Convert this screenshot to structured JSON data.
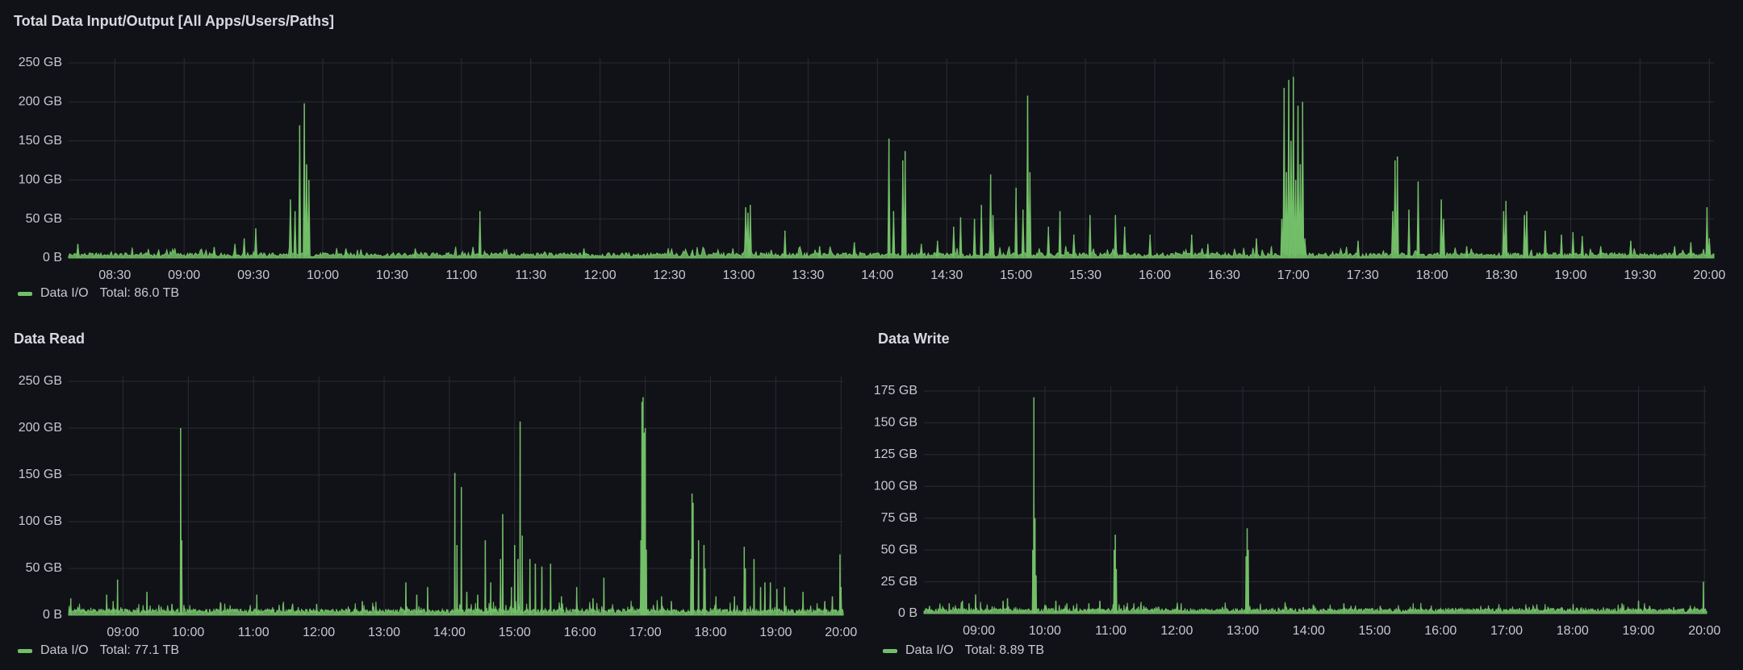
{
  "colors": {
    "series": "#73bf69",
    "grid": "#2a2c33",
    "axis_text": "#c7c8d1",
    "background": "#111217"
  },
  "chart_data": [
    {
      "type": "area",
      "title": "Total Data Input/Output [All Apps/Users/Paths]",
      "y_unit": "GB",
      "ylim": [
        0,
        250
      ],
      "yticks": [
        "0 B",
        "50 GB",
        "100 GB",
        "150 GB",
        "200 GB",
        "250 GB"
      ],
      "ytick_values": [
        0,
        50,
        100,
        150,
        200,
        250
      ],
      "xlim_minutes": [
        490,
        1202
      ],
      "xticks": [
        "08:30",
        "09:00",
        "09:30",
        "10:00",
        "10:30",
        "11:00",
        "11:30",
        "12:00",
        "12:30",
        "13:00",
        "13:30",
        "14:00",
        "14:30",
        "15:00",
        "15:30",
        "16:00",
        "16:30",
        "17:00",
        "17:30",
        "18:00",
        "18:30",
        "19:00",
        "19:30",
        "20:00"
      ],
      "xtick_minutes": [
        510,
        540,
        570,
        600,
        630,
        660,
        690,
        720,
        750,
        780,
        810,
        840,
        870,
        900,
        930,
        960,
        990,
        1020,
        1050,
        1080,
        1110,
        1140,
        1170,
        1200
      ],
      "baseline": 5,
      "spikes": [
        {
          "t": 494,
          "v": 18
        },
        {
          "t": 529,
          "v": 10
        },
        {
          "t": 553,
          "v": 14
        },
        {
          "t": 562,
          "v": 18
        },
        {
          "t": 566,
          "v": 25
        },
        {
          "t": 571,
          "v": 38
        },
        {
          "t": 586,
          "v": 75
        },
        {
          "t": 588,
          "v": 60
        },
        {
          "t": 590,
          "v": 170
        },
        {
          "t": 592,
          "v": 198
        },
        {
          "t": 593,
          "v": 120
        },
        {
          "t": 594,
          "v": 100
        },
        {
          "t": 610,
          "v": 12
        },
        {
          "t": 640,
          "v": 12
        },
        {
          "t": 665,
          "v": 14
        },
        {
          "t": 668,
          "v": 60
        },
        {
          "t": 713,
          "v": 12
        },
        {
          "t": 760,
          "v": 10
        },
        {
          "t": 783,
          "v": 65
        },
        {
          "t": 784,
          "v": 58
        },
        {
          "t": 785,
          "v": 68
        },
        {
          "t": 800,
          "v": 35
        },
        {
          "t": 815,
          "v": 15
        },
        {
          "t": 830,
          "v": 20
        },
        {
          "t": 845,
          "v": 153
        },
        {
          "t": 847,
          "v": 60
        },
        {
          "t": 851,
          "v": 125
        },
        {
          "t": 852,
          "v": 137
        },
        {
          "t": 859,
          "v": 18
        },
        {
          "t": 866,
          "v": 22
        },
        {
          "t": 873,
          "v": 40
        },
        {
          "t": 876,
          "v": 52
        },
        {
          "t": 882,
          "v": 50
        },
        {
          "t": 885,
          "v": 68
        },
        {
          "t": 889,
          "v": 107
        },
        {
          "t": 890,
          "v": 55
        },
        {
          "t": 900,
          "v": 90
        },
        {
          "t": 903,
          "v": 62
        },
        {
          "t": 905,
          "v": 208
        },
        {
          "t": 906,
          "v": 110
        },
        {
          "t": 914,
          "v": 40
        },
        {
          "t": 919,
          "v": 60
        },
        {
          "t": 925,
          "v": 30
        },
        {
          "t": 932,
          "v": 55
        },
        {
          "t": 943,
          "v": 55
        },
        {
          "t": 947,
          "v": 40
        },
        {
          "t": 958,
          "v": 30
        },
        {
          "t": 976,
          "v": 30
        },
        {
          "t": 983,
          "v": 18
        },
        {
          "t": 1004,
          "v": 25
        },
        {
          "t": 1015,
          "v": 50
        },
        {
          "t": 1016,
          "v": 218
        },
        {
          "t": 1017,
          "v": 110
        },
        {
          "t": 1018,
          "v": 228
        },
        {
          "t": 1019,
          "v": 150
        },
        {
          "t": 1020,
          "v": 232
        },
        {
          "t": 1021,
          "v": 100
        },
        {
          "t": 1022,
          "v": 195
        },
        {
          "t": 1023,
          "v": 120
        },
        {
          "t": 1024,
          "v": 200
        },
        {
          "t": 1025,
          "v": 25
        },
        {
          "t": 1048,
          "v": 22
        },
        {
          "t": 1063,
          "v": 60
        },
        {
          "t": 1064,
          "v": 125
        },
        {
          "t": 1065,
          "v": 130
        },
        {
          "t": 1070,
          "v": 62
        },
        {
          "t": 1074,
          "v": 98
        },
        {
          "t": 1084,
          "v": 75
        },
        {
          "t": 1085,
          "v": 50
        },
        {
          "t": 1095,
          "v": 15
        },
        {
          "t": 1111,
          "v": 60
        },
        {
          "t": 1112,
          "v": 73
        },
        {
          "t": 1120,
          "v": 55
        },
        {
          "t": 1121,
          "v": 60
        },
        {
          "t": 1129,
          "v": 35
        },
        {
          "t": 1136,
          "v": 30
        },
        {
          "t": 1141,
          "v": 33
        },
        {
          "t": 1145,
          "v": 28
        },
        {
          "t": 1153,
          "v": 15
        },
        {
          "t": 1166,
          "v": 22
        },
        {
          "t": 1185,
          "v": 15
        },
        {
          "t": 1192,
          "v": 20
        },
        {
          "t": 1199,
          "v": 65
        },
        {
          "t": 1200,
          "v": 25
        }
      ],
      "legend": {
        "label": "Data I/O",
        "total": "Total: 86.0 TB"
      }
    },
    {
      "type": "area",
      "title": "Data Read",
      "y_unit": "GB",
      "ylim": [
        0,
        250
      ],
      "yticks": [
        "0 B",
        "50 GB",
        "100 GB",
        "150 GB",
        "200 GB",
        "250 GB"
      ],
      "ytick_values": [
        0,
        50,
        100,
        150,
        200,
        250
      ],
      "xlim_minutes": [
        490,
        1202
      ],
      "xticks": [
        "09:00",
        "10:00",
        "11:00",
        "12:00",
        "13:00",
        "14:00",
        "15:00",
        "16:00",
        "17:00",
        "18:00",
        "19:00",
        "20:00"
      ],
      "xtick_minutes": [
        540,
        600,
        660,
        720,
        780,
        840,
        900,
        960,
        1020,
        1080,
        1140,
        1200
      ],
      "baseline": 5,
      "spikes": [
        {
          "t": 492,
          "v": 18
        },
        {
          "t": 525,
          "v": 22
        },
        {
          "t": 531,
          "v": 15
        },
        {
          "t": 535,
          "v": 38
        },
        {
          "t": 562,
          "v": 25
        },
        {
          "t": 585,
          "v": 12
        },
        {
          "t": 593,
          "v": 200
        },
        {
          "t": 594,
          "v": 80
        },
        {
          "t": 630,
          "v": 12
        },
        {
          "t": 663,
          "v": 22
        },
        {
          "t": 718,
          "v": 12
        },
        {
          "t": 760,
          "v": 15
        },
        {
          "t": 800,
          "v": 35
        },
        {
          "t": 810,
          "v": 22
        },
        {
          "t": 820,
          "v": 30
        },
        {
          "t": 845,
          "v": 152
        },
        {
          "t": 847,
          "v": 75
        },
        {
          "t": 851,
          "v": 137
        },
        {
          "t": 856,
          "v": 25
        },
        {
          "t": 866,
          "v": 22
        },
        {
          "t": 873,
          "v": 80
        },
        {
          "t": 878,
          "v": 35
        },
        {
          "t": 887,
          "v": 60
        },
        {
          "t": 889,
          "v": 108
        },
        {
          "t": 897,
          "v": 30
        },
        {
          "t": 900,
          "v": 75
        },
        {
          "t": 903,
          "v": 60
        },
        {
          "t": 905,
          "v": 207
        },
        {
          "t": 907,
          "v": 85
        },
        {
          "t": 914,
          "v": 60
        },
        {
          "t": 919,
          "v": 55
        },
        {
          "t": 925,
          "v": 52
        },
        {
          "t": 933,
          "v": 55
        },
        {
          "t": 943,
          "v": 20
        },
        {
          "t": 957,
          "v": 30
        },
        {
          "t": 972,
          "v": 18
        },
        {
          "t": 982,
          "v": 40
        },
        {
          "t": 1016,
          "v": 80
        },
        {
          "t": 1017,
          "v": 228
        },
        {
          "t": 1018,
          "v": 233
        },
        {
          "t": 1019,
          "v": 195
        },
        {
          "t": 1020,
          "v": 200
        },
        {
          "t": 1021,
          "v": 70
        },
        {
          "t": 1035,
          "v": 20
        },
        {
          "t": 1044,
          "v": 15
        },
        {
          "t": 1062,
          "v": 60
        },
        {
          "t": 1063,
          "v": 130
        },
        {
          "t": 1064,
          "v": 120
        },
        {
          "t": 1069,
          "v": 80
        },
        {
          "t": 1074,
          "v": 75
        },
        {
          "t": 1075,
          "v": 50
        },
        {
          "t": 1085,
          "v": 20
        },
        {
          "t": 1102,
          "v": 20
        },
        {
          "t": 1111,
          "v": 73
        },
        {
          "t": 1112,
          "v": 50
        },
        {
          "t": 1120,
          "v": 60
        },
        {
          "t": 1126,
          "v": 30
        },
        {
          "t": 1130,
          "v": 35
        },
        {
          "t": 1135,
          "v": 35
        },
        {
          "t": 1141,
          "v": 28
        },
        {
          "t": 1148,
          "v": 30
        },
        {
          "t": 1165,
          "v": 25
        },
        {
          "t": 1185,
          "v": 15
        },
        {
          "t": 1192,
          "v": 20
        },
        {
          "t": 1199,
          "v": 65
        },
        {
          "t": 1200,
          "v": 30
        }
      ],
      "legend": {
        "label": "Data I/O",
        "total": "Total: 77.1 TB"
      }
    },
    {
      "type": "area",
      "title": "Data Write",
      "y_unit": "GB",
      "ylim": [
        0,
        175
      ],
      "yticks": [
        "0 B",
        "25 GB",
        "50 GB",
        "75 GB",
        "100 GB",
        "125 GB",
        "150 GB",
        "175 GB"
      ],
      "ytick_values": [
        0,
        25,
        50,
        75,
        100,
        125,
        150,
        175
      ],
      "xlim_minutes": [
        490,
        1202
      ],
      "xticks": [
        "09:00",
        "10:00",
        "11:00",
        "12:00",
        "13:00",
        "14:00",
        "15:00",
        "16:00",
        "17:00",
        "18:00",
        "19:00",
        "20:00"
      ],
      "xtick_minutes": [
        540,
        600,
        660,
        720,
        780,
        840,
        900,
        960,
        1020,
        1080,
        1140,
        1200
      ],
      "baseline": 3,
      "spikes": [
        {
          "t": 495,
          "v": 6
        },
        {
          "t": 513,
          "v": 8
        },
        {
          "t": 525,
          "v": 10
        },
        {
          "t": 531,
          "v": 8
        },
        {
          "t": 537,
          "v": 15
        },
        {
          "t": 562,
          "v": 10
        },
        {
          "t": 566,
          "v": 12
        },
        {
          "t": 589,
          "v": 50
        },
        {
          "t": 590,
          "v": 170
        },
        {
          "t": 591,
          "v": 75
        },
        {
          "t": 592,
          "v": 30
        },
        {
          "t": 610,
          "v": 10
        },
        {
          "t": 620,
          "v": 8
        },
        {
          "t": 640,
          "v": 8
        },
        {
          "t": 650,
          "v": 10
        },
        {
          "t": 663,
          "v": 50
        },
        {
          "t": 664,
          "v": 62
        },
        {
          "t": 665,
          "v": 35
        },
        {
          "t": 690,
          "v": 6
        },
        {
          "t": 720,
          "v": 5
        },
        {
          "t": 783,
          "v": 45
        },
        {
          "t": 784,
          "v": 67
        },
        {
          "t": 785,
          "v": 50
        },
        {
          "t": 835,
          "v": 5
        },
        {
          "t": 845,
          "v": 6
        },
        {
          "t": 872,
          "v": 8
        },
        {
          "t": 905,
          "v": 6
        },
        {
          "t": 960,
          "v": 4
        },
        {
          "t": 1000,
          "v": 3
        },
        {
          "t": 1070,
          "v": 5
        },
        {
          "t": 1090,
          "v": 4
        },
        {
          "t": 1125,
          "v": 8
        },
        {
          "t": 1140,
          "v": 10
        },
        {
          "t": 1150,
          "v": 6
        },
        {
          "t": 1172,
          "v": 5
        },
        {
          "t": 1199,
          "v": 25
        }
      ],
      "legend": {
        "label": "Data I/O",
        "total": "Total: 8.89 TB"
      }
    }
  ]
}
